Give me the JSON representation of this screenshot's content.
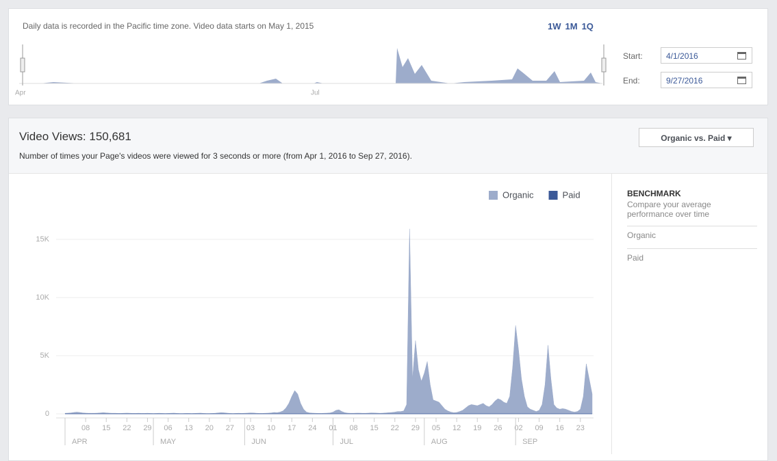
{
  "range_panel": {
    "note": "Daily data is recorded in the Pacific time zone. Video data starts on May 1, 2015",
    "presets": [
      "1W",
      "1M",
      "1Q"
    ],
    "mini_labels": [
      "Apr",
      "Jul"
    ],
    "start_label": "Start:",
    "start_value": "4/1/2016",
    "end_label": "End:",
    "end_value": "9/27/2016"
  },
  "header": {
    "title": "Video Views: 150,681",
    "description": "Number of times your Page's videos were viewed for 3 seconds or more (from Apr 1, 2016 to Sep 27, 2016).",
    "dropdown": "Organic vs. Paid"
  },
  "sidebar": {
    "title": "BENCHMARK",
    "subtitle": "Compare your average performance over time",
    "items": [
      "Organic",
      "Paid"
    ]
  },
  "chart_data": {
    "type": "area",
    "xlim": [
      0,
      179
    ],
    "xticks": [
      {
        "value": 7,
        "label": "08"
      },
      {
        "value": 14,
        "label": "15"
      },
      {
        "value": 21,
        "label": "22"
      },
      {
        "value": 28,
        "label": "29"
      },
      {
        "value": 35,
        "label": "06"
      },
      {
        "value": 42,
        "label": "13"
      },
      {
        "value": 49,
        "label": "20"
      },
      {
        "value": 56,
        "label": "27"
      },
      {
        "value": 63,
        "label": "03"
      },
      {
        "value": 70,
        "label": "10"
      },
      {
        "value": 77,
        "label": "17"
      },
      {
        "value": 84,
        "label": "24"
      },
      {
        "value": 91,
        "label": "01"
      },
      {
        "value": 98,
        "label": "08"
      },
      {
        "value": 105,
        "label": "15"
      },
      {
        "value": 112,
        "label": "22"
      },
      {
        "value": 119,
        "label": "29"
      },
      {
        "value": 126,
        "label": "05"
      },
      {
        "value": 133,
        "label": "12"
      },
      {
        "value": 140,
        "label": "19"
      },
      {
        "value": 147,
        "label": "26"
      },
      {
        "value": 154,
        "label": "02"
      },
      {
        "value": 161,
        "label": "09"
      },
      {
        "value": 168,
        "label": "16"
      },
      {
        "value": 175,
        "label": "23"
      }
    ],
    "month_ticks": [
      {
        "value": 0,
        "label": "APR"
      },
      {
        "value": 30,
        "label": "MAY"
      },
      {
        "value": 61,
        "label": "JUN"
      },
      {
        "value": 91,
        "label": "JUL"
      },
      {
        "value": 122,
        "label": "AUG"
      },
      {
        "value": 153,
        "label": "SEP"
      }
    ],
    "ylim": [
      0,
      16000
    ],
    "yticks": [
      0,
      {
        "value": 5000,
        "label": "5K"
      },
      {
        "value": 10000,
        "label": "10K"
      },
      {
        "value": 15000,
        "label": "15K"
      }
    ],
    "grid": true,
    "legend": "top-right",
    "series": [
      {
        "name": "Organic",
        "color": "#9daccb",
        "values": [
          50,
          60,
          80,
          120,
          150,
          120,
          80,
          60,
          50,
          50,
          50,
          60,
          80,
          100,
          80,
          60,
          50,
          50,
          40,
          40,
          50,
          60,
          50,
          40,
          40,
          50,
          40,
          40,
          50,
          40,
          30,
          40,
          50,
          40,
          30,
          40,
          50,
          60,
          40,
          30,
          30,
          40,
          40,
          30,
          40,
          50,
          60,
          40,
          30,
          30,
          40,
          50,
          80,
          100,
          90,
          60,
          40,
          30,
          40,
          50,
          40,
          50,
          60,
          80,
          70,
          50,
          40,
          40,
          50,
          60,
          80,
          120,
          100,
          150,
          250,
          500,
          900,
          1500,
          2000,
          1700,
          900,
          400,
          150,
          80,
          60,
          50,
          40,
          40,
          50,
          60,
          80,
          150,
          300,
          350,
          200,
          100,
          60,
          50,
          50,
          60,
          60,
          50,
          50,
          60,
          80,
          70,
          60,
          50,
          60,
          80,
          100,
          120,
          150,
          200,
          200,
          250,
          800,
          15900,
          3000,
          6300,
          3800,
          2800,
          3500,
          4500,
          2500,
          1200,
          1100,
          1000,
          700,
          400,
          250,
          150,
          100,
          120,
          200,
          300,
          500,
          700,
          800,
          750,
          700,
          800,
          900,
          700,
          600,
          800,
          1100,
          1300,
          1200,
          1000,
          900,
          1500,
          4000,
          7600,
          5500,
          3000,
          1500,
          600,
          400,
          300,
          200,
          300,
          800,
          2500,
          5900,
          3000,
          800,
          500,
          400,
          450,
          400,
          300,
          200,
          150,
          200,
          400,
          1500,
          4300,
          3000,
          1700
        ]
      },
      {
        "name": "Paid",
        "color": "#3b5998",
        "values": [
          0,
          0,
          0,
          0,
          0,
          0,
          0,
          0,
          0,
          0,
          0,
          0,
          0,
          0,
          0,
          0,
          0,
          0,
          0,
          0,
          0,
          0,
          0,
          0,
          0,
          0,
          0,
          0,
          0,
          0,
          0,
          0,
          0,
          0,
          0,
          0,
          0,
          0,
          0,
          0,
          0,
          0,
          0,
          0,
          0,
          0,
          0,
          0,
          0,
          0,
          0,
          0,
          0,
          0,
          0,
          0,
          0,
          0,
          0,
          0,
          0,
          0,
          0,
          0,
          0,
          0,
          0,
          0,
          0,
          0,
          0,
          0,
          0,
          0,
          0,
          0,
          0,
          0,
          0,
          0,
          0,
          0,
          0,
          0,
          0,
          0,
          0,
          0,
          0,
          0,
          0,
          0,
          0,
          0,
          0,
          0,
          0,
          0,
          0,
          0,
          0,
          0,
          0,
          0,
          0,
          0,
          0,
          0,
          0,
          0,
          0,
          0,
          0,
          0,
          0,
          0,
          0,
          0,
          0,
          0,
          0,
          0,
          0,
          0,
          0,
          0,
          0,
          0,
          0,
          0,
          0,
          0,
          0,
          0,
          0,
          0,
          0,
          0,
          0,
          0,
          0,
          0,
          0,
          0,
          0,
          0,
          0,
          0,
          0,
          0,
          0,
          0,
          0,
          0,
          0,
          0,
          0,
          0,
          0,
          0,
          0,
          0,
          0,
          0,
          0,
          0,
          0,
          0,
          0,
          0,
          0,
          0,
          0,
          0,
          0,
          0,
          0,
          0,
          0,
          0
        ]
      }
    ]
  }
}
